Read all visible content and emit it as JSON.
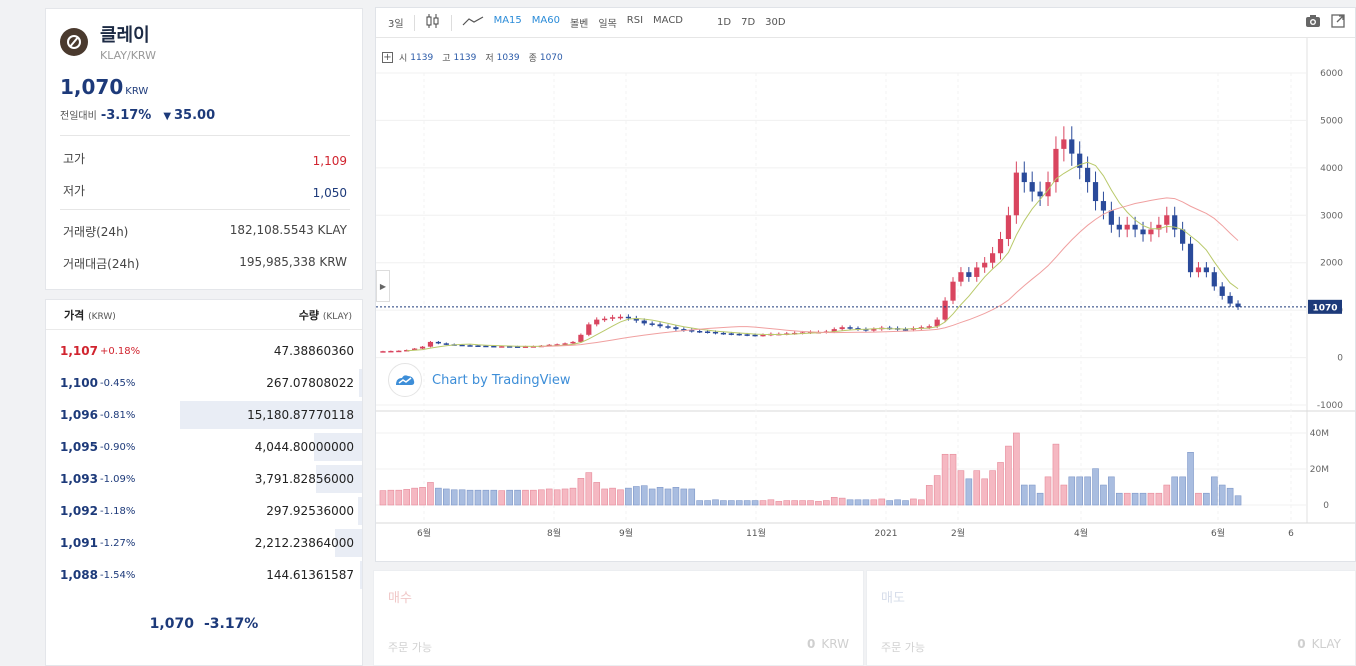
{
  "coin": {
    "name": "클레이",
    "pair": "KLAY/KRW",
    "price": "1,070",
    "price_unit": "KRW",
    "change_label": "전일대비",
    "change_rate": "-3.17%",
    "change_icon": "triangle-down-icon",
    "change_amount": "35.00",
    "high_label": "고가",
    "high_value": "1,109",
    "low_label": "저가",
    "low_value": "1,050",
    "volume_label": "거래량(24h)",
    "volume_value": "182,108.5543 KLAY",
    "amount_label": "거래대금(24h)",
    "amount_value": "195,985,338 KRW"
  },
  "orderbook": {
    "price_header": "가격",
    "price_unit": "(KRW)",
    "qty_header": "수량",
    "qty_unit": "(KLAY)",
    "rows": [
      {
        "price": "1,107",
        "rate": "+0.18%",
        "qty": "47.38860360",
        "up": true,
        "depth": 0
      },
      {
        "price": "1,100",
        "rate": "-0.45%",
        "qty": "267.07808022",
        "up": false,
        "depth": 0.018
      },
      {
        "price": "1,096",
        "rate": "-0.81%",
        "qty": "15,180.87770118",
        "up": false,
        "depth": 1.0
      },
      {
        "price": "1,095",
        "rate": "-0.90%",
        "qty": "4,044.80000000",
        "up": false,
        "depth": 0.266
      },
      {
        "price": "1,093",
        "rate": "-1.09%",
        "qty": "3,791.82856000",
        "up": false,
        "depth": 0.25
      },
      {
        "price": "1,092",
        "rate": "-1.18%",
        "qty": "297.92536000",
        "up": false,
        "depth": 0.02
      },
      {
        "price": "1,091",
        "rate": "-1.27%",
        "qty": "2,212.23864000",
        "up": false,
        "depth": 0.146
      },
      {
        "price": "1,088",
        "rate": "-1.54%",
        "qty": "144.61361587",
        "up": false,
        "depth": 0.01
      }
    ],
    "footer_price": "1,070",
    "footer_rate": "-3.17%"
  },
  "toolbar": {
    "interval": "3일",
    "candle_icon": "candlestick-icon",
    "line_icon": "line-chart-icon",
    "indicators": [
      "MA15",
      "MA60",
      "볼벤",
      "일목",
      "RSI",
      "MACD"
    ],
    "ranges": [
      "1D",
      "7D",
      "30D"
    ],
    "camera_icon": "camera-icon",
    "expand_icon": "expand-icon"
  },
  "ohlc": {
    "open_label": "시",
    "open": "1139",
    "high_label": "고",
    "high": "1139",
    "low_label": "저",
    "low": "1039",
    "close_label": "종",
    "close": "1070"
  },
  "tradingview_label": "Chart by TradingView",
  "chart_data": {
    "type": "candlestick",
    "price_axis_ticks": [
      "6000",
      "5000",
      "4000",
      "3000",
      "2000",
      "1000",
      "0",
      "-1000"
    ],
    "price_ylim": [
      -1000,
      6000
    ],
    "last_price_label": "1070",
    "volume_axis_ticks": [
      "40M",
      "20M",
      "0"
    ],
    "x_ticks": [
      "6월",
      "8월",
      "9월",
      "11월",
      "2021",
      "2월",
      "4월",
      "6월",
      "6"
    ],
    "series": [
      {
        "name": "MA15",
        "color": "#b9c96a"
      },
      {
        "name": "MA60",
        "color": "#f0a0a0"
      }
    ],
    "up_color": "#d9455f",
    "down_color": "#2a4a9a",
    "close_sampled": [
      135,
      140,
      145,
      160,
      190,
      230,
      330,
      300,
      280,
      270,
      260,
      255,
      250,
      245,
      240,
      240,
      235,
      230,
      235,
      240,
      250,
      270,
      280,
      300,
      330,
      480,
      700,
      800,
      820,
      850,
      860,
      830,
      780,
      720,
      700,
      660,
      640,
      600,
      580,
      560,
      550,
      540,
      520,
      510,
      500,
      490,
      480,
      470,
      480,
      500,
      500,
      510,
      520,
      530,
      540,
      540,
      550,
      600,
      640,
      620,
      600,
      580,
      600,
      630,
      620,
      600,
      590,
      620,
      640,
      660,
      800,
      1200,
      1600,
      1800,
      1700,
      1900,
      2000,
      2200,
      2500,
      3000,
      3900,
      3700,
      3500,
      3400,
      3700,
      4400,
      4600,
      4300,
      4000,
      3700,
      3300,
      3100,
      2800,
      2700,
      2800,
      2700,
      2600,
      2700,
      2800,
      3000,
      2700,
      2400,
      1800,
      1900,
      1800,
      1500,
      1300,
      1139,
      1070
    ]
  }
}
